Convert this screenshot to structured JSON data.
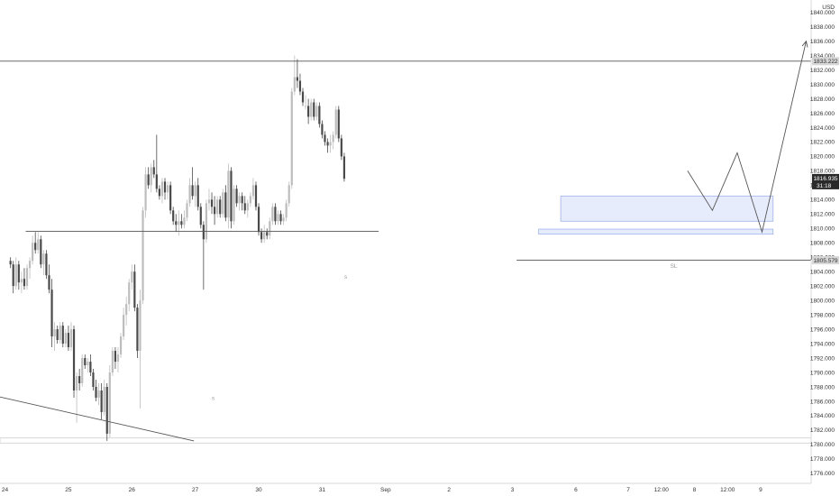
{
  "chart_data": {
    "type": "candlestick",
    "title": "",
    "currency_label": "USD",
    "y_range": [
      1775,
      1841
    ],
    "price_ticks": [
      1840,
      1838,
      1836,
      1834,
      1832,
      1830,
      1828,
      1826,
      1824,
      1822,
      1820,
      1818,
      1816,
      1814,
      1812,
      1810,
      1808,
      1806,
      1804,
      1802,
      1800,
      1798,
      1796,
      1794,
      1792,
      1790,
      1788,
      1786,
      1784,
      1782,
      1780,
      1778,
      1776
    ],
    "time_ticks": [
      {
        "label": "24",
        "bar": 0
      },
      {
        "label": "25",
        "bar": 23
      },
      {
        "label": "26",
        "bar": 46
      },
      {
        "label": "27",
        "bar": 69
      },
      {
        "label": "30",
        "bar": 92
      },
      {
        "label": "31",
        "bar": 115
      },
      {
        "label": "Sep",
        "bar": 138
      },
      {
        "label": "2",
        "bar": 161
      },
      {
        "label": "3",
        "bar": 184
      },
      {
        "label": "6",
        "bar": 207
      },
      {
        "label": "7",
        "bar": 226
      },
      {
        "label": "12:00",
        "bar": 238
      },
      {
        "label": "8",
        "bar": 250
      },
      {
        "label": "12:00",
        "bar": 262
      },
      {
        "label": "9",
        "bar": 274
      }
    ],
    "current_price": {
      "label": "1816.935",
      "countdown": "31:18",
      "value": 1816.935
    },
    "level_labels": [
      {
        "label": "1833.222",
        "value": 1833.222
      },
      {
        "label": "1805.579",
        "value": 1805.579
      }
    ],
    "candles": [
      [
        1805.5,
        1806.0,
        1804.5,
        1805.0
      ],
      [
        1805.0,
        1805.5,
        1801.0,
        1802.0
      ],
      [
        1802.0,
        1806.0,
        1801.5,
        1805.0
      ],
      [
        1805.0,
        1805.5,
        1801.5,
        1802.5
      ],
      [
        1802.5,
        1804.0,
        1801.0,
        1803.0
      ],
      [
        1803.0,
        1804.5,
        1801.5,
        1802.0
      ],
      [
        1802.0,
        1805.0,
        1801.5,
        1804.5
      ],
      [
        1804.5,
        1806.0,
        1803.0,
        1805.5
      ],
      [
        1805.5,
        1809.0,
        1805.0,
        1808.0
      ],
      [
        1808.0,
        1809.5,
        1806.5,
        1807.0
      ],
      [
        1807.0,
        1809.5,
        1806.5,
        1808.5
      ],
      [
        1808.5,
        1809.0,
        1804.5,
        1805.0
      ],
      [
        1805.0,
        1807.0,
        1803.5,
        1806.5
      ],
      [
        1806.5,
        1807.0,
        1803.0,
        1803.5
      ],
      [
        1803.5,
        1805.0,
        1801.0,
        1801.5
      ],
      [
        1801.5,
        1803.0,
        1793.5,
        1795.0
      ],
      [
        1795.0,
        1797.0,
        1793.0,
        1796.0
      ],
      [
        1796.0,
        1796.5,
        1794.0,
        1794.5
      ],
      [
        1794.5,
        1797.0,
        1794.0,
        1796.5
      ],
      [
        1796.5,
        1797.0,
        1793.5,
        1794.0
      ],
      [
        1794.0,
        1796.0,
        1793.5,
        1795.5
      ],
      [
        1795.5,
        1796.5,
        1793.0,
        1793.5
      ],
      [
        1793.5,
        1797.0,
        1793.0,
        1796.0
      ],
      [
        1796.0,
        1796.5,
        1786.5,
        1787.5
      ],
      [
        1787.5,
        1790.0,
        1783.0,
        1789.5
      ],
      [
        1789.5,
        1790.5,
        1787.5,
        1788.5
      ],
      [
        1788.5,
        1792.5,
        1788.0,
        1792.0
      ],
      [
        1792.0,
        1792.5,
        1790.5,
        1791.0
      ],
      [
        1791.0,
        1792.0,
        1790.0,
        1791.5
      ],
      [
        1791.5,
        1792.5,
        1789.5,
        1790.0
      ],
      [
        1790.0,
        1790.5,
        1787.5,
        1788.0
      ],
      [
        1788.0,
        1789.0,
        1786.0,
        1786.5
      ],
      [
        1786.5,
        1788.5,
        1785.5,
        1787.5
      ],
      [
        1787.5,
        1788.5,
        1783.5,
        1784.5
      ],
      [
        1784.5,
        1789.0,
        1784.0,
        1788.0
      ],
      [
        1788.0,
        1788.5,
        1780.5,
        1781.5
      ],
      [
        1781.5,
        1791.0,
        1781.0,
        1790.0
      ],
      [
        1790.0,
        1793.5,
        1789.5,
        1793.0
      ],
      [
        1793.0,
        1793.5,
        1790.5,
        1791.5
      ],
      [
        1791.5,
        1793.5,
        1790.0,
        1792.5
      ],
      [
        1792.5,
        1795.5,
        1792.0,
        1795.0
      ],
      [
        1795.0,
        1799.0,
        1794.5,
        1798.0
      ],
      [
        1798.0,
        1800.5,
        1796.5,
        1799.5
      ],
      [
        1799.5,
        1803.0,
        1798.5,
        1802.5
      ],
      [
        1802.5,
        1805.0,
        1801.5,
        1804.0
      ],
      [
        1804.0,
        1805.0,
        1798.5,
        1799.0
      ],
      [
        1799.0,
        1799.5,
        1792.0,
        1793.0
      ],
      [
        1793.0,
        1801.5,
        1785.0,
        1800.0
      ],
      [
        1800.0,
        1813.0,
        1799.5,
        1812.5
      ],
      [
        1812.5,
        1818.5,
        1811.5,
        1817.5
      ],
      [
        1817.5,
        1818.5,
        1815.5,
        1816.0
      ],
      [
        1816.0,
        1819.0,
        1815.0,
        1818.5
      ],
      [
        1818.5,
        1819.5,
        1817.0,
        1817.5
      ],
      [
        1817.5,
        1823.0,
        1815.0,
        1815.5
      ],
      [
        1815.5,
        1816.0,
        1814.0,
        1814.5
      ],
      [
        1814.5,
        1817.0,
        1813.5,
        1816.5
      ],
      [
        1816.5,
        1817.0,
        1814.0,
        1815.0
      ],
      [
        1815.0,
        1816.5,
        1814.0,
        1816.0
      ],
      [
        1816.0,
        1816.5,
        1812.0,
        1812.5
      ],
      [
        1812.5,
        1813.0,
        1810.5,
        1811.0
      ],
      [
        1811.0,
        1812.0,
        1809.5,
        1810.5
      ],
      [
        1810.5,
        1812.5,
        1809.0,
        1811.0
      ],
      [
        1811.0,
        1812.0,
        1810.0,
        1810.5
      ],
      [
        1810.5,
        1812.5,
        1810.0,
        1811.5
      ],
      [
        1811.5,
        1814.0,
        1811.0,
        1813.5
      ],
      [
        1813.5,
        1817.0,
        1813.0,
        1816.0
      ],
      [
        1816.0,
        1818.5,
        1814.0,
        1814.5
      ],
      [
        1814.5,
        1816.5,
        1813.0,
        1816.0
      ],
      [
        1816.0,
        1817.0,
        1812.5,
        1813.0
      ],
      [
        1813.0,
        1813.5,
        1810.0,
        1810.5
      ],
      [
        1810.5,
        1811.0,
        1801.5,
        1808.5
      ],
      [
        1808.5,
        1814.0,
        1808.0,
        1813.5
      ],
      [
        1813.5,
        1815.5,
        1812.5,
        1814.0
      ],
      [
        1814.0,
        1815.0,
        1812.0,
        1813.0
      ],
      [
        1813.0,
        1814.5,
        1810.5,
        1812.0
      ],
      [
        1812.0,
        1814.5,
        1811.5,
        1814.0
      ],
      [
        1814.0,
        1814.5,
        1811.5,
        1812.0
      ],
      [
        1812.0,
        1815.5,
        1811.5,
        1815.0
      ],
      [
        1815.0,
        1816.0,
        1811.0,
        1811.5
      ],
      [
        1811.5,
        1819.0,
        1810.0,
        1818.0
      ],
      [
        1818.0,
        1818.5,
        1810.0,
        1811.0
      ],
      [
        1811.0,
        1816.0,
        1810.5,
        1815.5
      ],
      [
        1815.5,
        1816.0,
        1813.0,
        1813.5
      ],
      [
        1813.5,
        1815.0,
        1812.5,
        1814.5
      ],
      [
        1814.5,
        1815.0,
        1812.5,
        1813.5
      ],
      [
        1813.5,
        1814.5,
        1812.0,
        1812.5
      ],
      [
        1812.5,
        1814.0,
        1811.5,
        1813.5
      ],
      [
        1813.5,
        1815.0,
        1813.0,
        1814.5
      ],
      [
        1814.5,
        1817.0,
        1814.0,
        1816.0
      ],
      [
        1816.0,
        1816.5,
        1812.5,
        1813.0
      ],
      [
        1813.0,
        1813.5,
        1809.0,
        1809.5
      ],
      [
        1809.5,
        1810.0,
        1808.0,
        1808.5
      ],
      [
        1808.5,
        1810.5,
        1808.0,
        1809.5
      ],
      [
        1809.5,
        1810.0,
        1808.5,
        1809.0
      ],
      [
        1809.0,
        1811.5,
        1808.5,
        1811.0
      ],
      [
        1811.0,
        1813.5,
        1810.5,
        1813.0
      ],
      [
        1813.0,
        1813.5,
        1810.5,
        1811.0
      ],
      [
        1811.0,
        1812.5,
        1810.5,
        1812.0
      ],
      [
        1812.0,
        1812.5,
        1810.5,
        1811.0
      ],
      [
        1811.0,
        1812.0,
        1810.5,
        1811.5
      ],
      [
        1811.5,
        1814.0,
        1811.0,
        1813.5
      ],
      [
        1813.5,
        1816.5,
        1813.0,
        1816.0
      ],
      [
        1816.0,
        1829.5,
        1815.5,
        1829.0
      ],
      [
        1829.0,
        1834.0,
        1828.5,
        1831.0
      ],
      [
        1831.0,
        1833.5,
        1829.5,
        1830.5
      ],
      [
        1830.5,
        1831.5,
        1828.5,
        1829.0
      ],
      [
        1829.0,
        1829.5,
        1827.0,
        1827.5
      ],
      [
        1827.0,
        1828.5,
        1826.5,
        1827.0
      ],
      [
        1827.0,
        1828.0,
        1824.5,
        1825.5
      ],
      [
        1825.5,
        1828.0,
        1825.0,
        1827.5
      ],
      [
        1827.5,
        1828.0,
        1825.0,
        1825.5
      ],
      [
        1825.5,
        1827.5,
        1825.0,
        1827.0
      ],
      [
        1827.0,
        1827.5,
        1824.0,
        1824.5
      ],
      [
        1824.5,
        1825.0,
        1822.5,
        1823.0
      ],
      [
        1823.0,
        1823.5,
        1821.5,
        1822.0
      ],
      [
        1822.0,
        1822.5,
        1820.5,
        1821.5
      ],
      [
        1821.5,
        1823.0,
        1820.5,
        1822.0
      ],
      [
        1822.0,
        1823.5,
        1821.0,
        1823.0
      ],
      [
        1823.0,
        1827.0,
        1822.5,
        1826.5
      ],
      [
        1826.5,
        1827.0,
        1822.0,
        1822.5
      ],
      [
        1822.5,
        1823.0,
        1819.5,
        1820.0
      ],
      [
        1820.0,
        1820.5,
        1816.5,
        1816.9
      ]
    ],
    "projection_path": [
      {
        "bar": 248,
        "price": 1818.0
      },
      {
        "bar": 257,
        "price": 1812.5
      },
      {
        "bar": 266,
        "price": 1820.5
      },
      {
        "bar": 275,
        "price": 1809.5
      },
      {
        "bar": 291,
        "price": 1836.0
      }
    ],
    "trendline": {
      "from": {
        "bar": -6,
        "price": 1787.0
      },
      "to": {
        "bar": 69,
        "price": 1780.5
      }
    },
    "horizontal_lines": [
      {
        "name": "resistance-1833",
        "from_bar": -10,
        "to_bar": 300,
        "price": 1833.222
      },
      {
        "name": "level-1809",
        "from_bar": 8,
        "to_bar": 136,
        "price": 1809.6
      },
      {
        "name": "sl-1805",
        "from_bar": 186,
        "to_bar": 300,
        "price": 1805.579
      }
    ],
    "zones": [
      {
        "name": "demand-zone-upper",
        "bar_start": 202,
        "bar_end": 279,
        "price_low": 1811.0,
        "price_high": 1814.5
      },
      {
        "name": "demand-zone-lower",
        "bar_start": 194,
        "bar_end": 279,
        "price_low": 1809.2,
        "price_high": 1809.9
      },
      {
        "name": "support-band-1780",
        "bar_start": -10,
        "bar_end": 300,
        "price_low": 1780.2,
        "price_high": 1780.9
      }
    ],
    "annotations": [
      {
        "name": "sl-label",
        "text": "SL",
        "bar": 243,
        "price": 1804.5
      },
      {
        "name": "small-mark-1",
        "text": "s",
        "bar": 124,
        "price": 1803.0
      },
      {
        "name": "small-mark-2",
        "text": "s",
        "bar": 76,
        "price": 1786.2
      }
    ],
    "colors": {
      "bar_up": "#bdbdbd",
      "bar_down": "#4a4a4a",
      "zone_fill": "#e3e9fb",
      "zone_stroke": "#9fb4e8",
      "line": "#555555",
      "axis_bg": "#ffffff",
      "label_box": "#d6d6d6",
      "price_box": "#2a2a2a"
    }
  }
}
